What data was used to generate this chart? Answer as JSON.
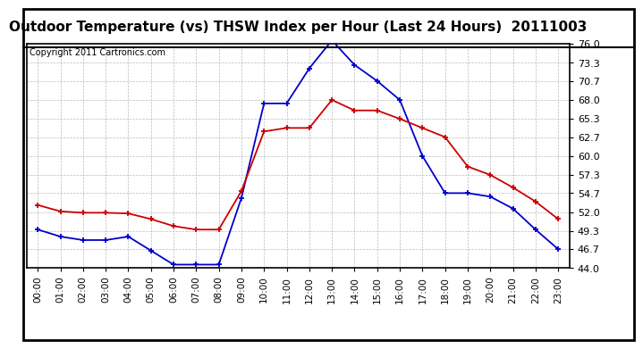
{
  "title": "Outdoor Temperature (vs) THSW Index per Hour (Last 24 Hours)  20111003",
  "copyright": "Copyright 2011 Cartronics.com",
  "hours": [
    "00:00",
    "01:00",
    "02:00",
    "03:00",
    "04:00",
    "05:00",
    "06:00",
    "07:00",
    "08:00",
    "09:00",
    "10:00",
    "11:00",
    "12:00",
    "13:00",
    "14:00",
    "15:00",
    "16:00",
    "17:00",
    "18:00",
    "19:00",
    "20:00",
    "21:00",
    "22:00",
    "23:00"
  ],
  "temp_red": [
    53.0,
    52.1,
    51.9,
    51.9,
    51.8,
    51.0,
    50.0,
    49.5,
    49.5,
    55.0,
    63.5,
    64.0,
    64.0,
    68.0,
    66.5,
    66.5,
    65.3,
    64.0,
    62.7,
    58.5,
    57.3,
    55.5,
    53.5,
    51.0
  ],
  "thsw_blue": [
    49.5,
    48.5,
    48.0,
    48.0,
    48.5,
    46.5,
    44.5,
    44.5,
    44.5,
    54.0,
    67.5,
    67.5,
    72.5,
    76.5,
    73.0,
    70.7,
    68.0,
    60.0,
    54.7,
    54.7,
    54.2,
    52.5,
    49.5,
    46.7
  ],
  "ylim": [
    44.0,
    76.0
  ],
  "yticks": [
    44.0,
    46.7,
    49.3,
    52.0,
    54.7,
    57.3,
    60.0,
    62.7,
    65.3,
    68.0,
    70.7,
    73.3,
    76.0
  ],
  "bg_color": "#ffffff",
  "grid_color": "#bbbbbb",
  "red_color": "#cc0000",
  "blue_color": "#0000cc",
  "title_fontsize": 11,
  "copyright_fontsize": 7
}
